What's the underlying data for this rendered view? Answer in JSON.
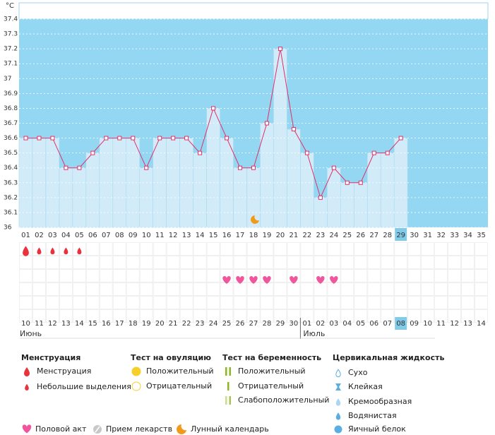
{
  "chart_data": {
    "type": "line",
    "unit": "°C",
    "categories": [
      "01",
      "02",
      "03",
      "04",
      "05",
      "06",
      "07",
      "08",
      "09",
      "10",
      "11",
      "12",
      "13",
      "14",
      "15",
      "16",
      "17",
      "18",
      "19",
      "20",
      "21",
      "22",
      "23",
      "24",
      "25",
      "26",
      "27",
      "28",
      "29",
      "30",
      "31",
      "32",
      "33",
      "34",
      "35"
    ],
    "values": [
      36.6,
      36.6,
      36.6,
      36.4,
      36.4,
      36.5,
      36.6,
      36.6,
      36.6,
      36.4,
      36.6,
      36.6,
      36.6,
      36.5,
      36.8,
      36.6,
      36.4,
      36.4,
      36.7,
      37.2,
      36.66,
      36.5,
      36.2,
      36.4,
      36.3,
      36.3,
      36.5,
      36.5,
      36.6,
      null,
      null,
      null,
      null,
      null,
      null
    ],
    "ylim": [
      36,
      37.4
    ],
    "yticks": [
      36,
      36.1,
      36.2,
      36.3,
      36.4,
      36.5,
      36.6,
      36.7,
      36.8,
      36.9,
      37,
      37.1,
      37.2,
      37.3,
      37.4
    ],
    "grid": true,
    "color": "#e0306a",
    "bar_color": "#d2ebf9",
    "background": "#93d7f2"
  },
  "symptoms": {
    "menstruation": [
      "heavy",
      "light",
      "light",
      "light",
      "light",
      null,
      null,
      null,
      null,
      null,
      null,
      null,
      null,
      null,
      null,
      null,
      null,
      null,
      null,
      null,
      null,
      null,
      null,
      null,
      null,
      null,
      null,
      null,
      null,
      null,
      null,
      null,
      null,
      null,
      null
    ],
    "intercourse": [
      false,
      false,
      false,
      false,
      false,
      false,
      false,
      false,
      false,
      false,
      false,
      false,
      false,
      false,
      false,
      true,
      true,
      true,
      true,
      false,
      true,
      false,
      true,
      true,
      false,
      false,
      false,
      false,
      false,
      false,
      false,
      false,
      false,
      false,
      false
    ]
  },
  "calendar": {
    "dates": [
      "10",
      "11",
      "12",
      "13",
      "14",
      "15",
      "16",
      "17",
      "18",
      "19",
      "20",
      "21",
      "22",
      "23",
      "24",
      "25",
      "26",
      "27",
      "28",
      "29",
      "30",
      "01",
      "02",
      "03",
      "04",
      "05",
      "06",
      "07",
      "08",
      "09",
      "10",
      "11",
      "12",
      "13",
      "14"
    ],
    "weekend": [
      false,
      false,
      false,
      true,
      true,
      false,
      false,
      false,
      false,
      false,
      true,
      true,
      false,
      false,
      false,
      false,
      false,
      true,
      true,
      false,
      false,
      false,
      false,
      false,
      true,
      true,
      false,
      false,
      false,
      false,
      false,
      true,
      true,
      false,
      false
    ],
    "months": [
      "Июнь",
      "Июль"
    ]
  },
  "legend": {
    "groups": [
      {
        "title": "Менструация",
        "items": [
          "Менструация",
          "Небольшие выделения"
        ]
      },
      {
        "title": "Тест на овуляцию",
        "items": [
          "Положительный",
          "Отрицательный"
        ]
      },
      {
        "title": "Тест на беременность",
        "items": [
          "Положительный",
          "Отрицательный",
          "Слабоположительный"
        ]
      },
      {
        "title": "Цервикальная жидкость",
        "items": [
          "Сухо",
          "Клейкая",
          "Кремообразная",
          "Водянистая",
          "Яичный белок"
        ]
      }
    ],
    "bottom": [
      "Половой акт",
      "Прием лекарств",
      "Лунный календарь"
    ]
  }
}
